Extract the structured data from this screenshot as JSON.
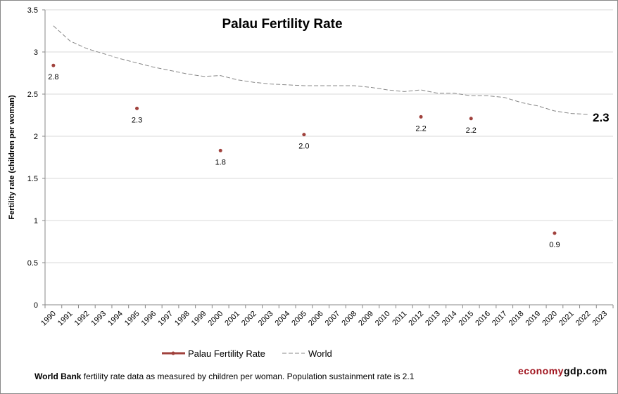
{
  "chart_data": {
    "type": "line",
    "title": "Palau Fertility Rate",
    "ylabel": "Fertility rate (children per woman)",
    "xlabel": "",
    "ylim": [
      0,
      3.5
    ],
    "yticks": [
      "0",
      "0.5",
      "1",
      "1.5",
      "2",
      "2.5",
      "3",
      "3.5"
    ],
    "grid": true,
    "legend_placement": "bottom",
    "categories": [
      "1990",
      "1991",
      "1992",
      "1993",
      "1994",
      "1995",
      "1996",
      "1997",
      "1998",
      "1999",
      "2000",
      "2001",
      "2002",
      "2003",
      "2004",
      "2005",
      "2006",
      "2007",
      "2008",
      "2009",
      "2010",
      "2011",
      "2012",
      "2013",
      "2014",
      "2015",
      "2016",
      "2017",
      "2018",
      "2019",
      "2020",
      "2021",
      "2022",
      "2023"
    ],
    "series": [
      {
        "name": "Palau Fertility Rate",
        "color": "#a0413c",
        "style": "markers",
        "points": [
          {
            "x": "1990",
            "y": 2.84,
            "label": "2.8"
          },
          {
            "x": "1995",
            "y": 2.33,
            "label": "2.3"
          },
          {
            "x": "2000",
            "y": 1.83,
            "label": "1.8"
          },
          {
            "x": "2005",
            "y": 2.02,
            "label": "2.0"
          },
          {
            "x": "2012",
            "y": 2.23,
            "label": "2.2"
          },
          {
            "x": "2015",
            "y": 2.21,
            "label": "2.2"
          },
          {
            "x": "2020",
            "y": 0.85,
            "label": "0.9"
          }
        ]
      },
      {
        "name": "World",
        "color": "#888888",
        "style": "dashed",
        "values": [
          3.31,
          3.13,
          3.04,
          2.98,
          2.92,
          2.87,
          2.82,
          2.78,
          2.74,
          2.71,
          2.72,
          2.67,
          2.64,
          2.62,
          2.61,
          2.6,
          2.6,
          2.6,
          2.6,
          2.58,
          2.55,
          2.53,
          2.55,
          2.51,
          2.51,
          2.48,
          2.48,
          2.46,
          2.4,
          2.36,
          2.3,
          2.27,
          2.26,
          null
        ],
        "end_label": "2.3"
      }
    ]
  },
  "footer": {
    "source_bold": "World Bank",
    "source_text": " fertility rate data as measured by children per woman.  Population sustainment rate is 2.1"
  },
  "brand": {
    "part1": "economy",
    "part2": "gdp.com"
  }
}
